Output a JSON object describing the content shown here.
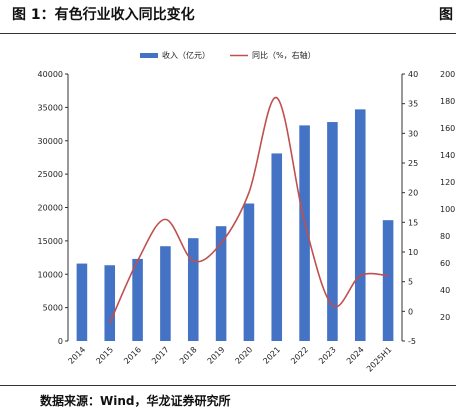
{
  "figure": {
    "title": "图 1：有色行业收入同比变化",
    "clipped_title": "图",
    "source": "数据来源：Wind，华龙证券研究所"
  },
  "chart_data": {
    "type": "bar",
    "categories": [
      "2014",
      "2015",
      "2016",
      "2017",
      "2018",
      "2019",
      "2020",
      "2021",
      "2022",
      "2023",
      "2024",
      "2025H1"
    ],
    "series": [
      {
        "name": "收入（亿元）",
        "type": "bar",
        "axis": "left",
        "color": "#4472C4",
        "values": [
          11600,
          11350,
          12300,
          14200,
          15400,
          17200,
          20600,
          28100,
          32300,
          32800,
          34700,
          18100
        ]
      },
      {
        "name": "同比（%，右轴）",
        "type": "line",
        "axis": "right",
        "color": "#C0504D",
        "values": [
          null,
          -2,
          8.5,
          15.5,
          8.5,
          11.5,
          20,
          36,
          15,
          1,
          6,
          6
        ]
      }
    ],
    "y_left": {
      "min": 0,
      "max": 40000,
      "ticks": [
        0,
        5000,
        10000,
        15000,
        20000,
        25000,
        30000,
        35000,
        40000
      ]
    },
    "y_right": {
      "min": -5,
      "max": 40,
      "ticks": [
        -5,
        0,
        5,
        10,
        15,
        20,
        25,
        30,
        35,
        40
      ]
    },
    "clipped_axis_ticks": [
      "200",
      "180",
      "160",
      "140",
      "120",
      "100",
      "80",
      "60",
      "40",
      "20"
    ],
    "grid": false,
    "legend_position": "top-center"
  }
}
